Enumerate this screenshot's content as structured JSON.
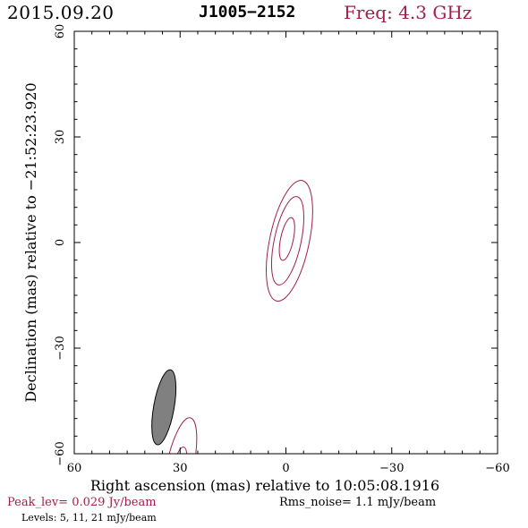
{
  "header": {
    "date": "2015.09.20",
    "source": "J1005−2152",
    "frequency": "Freq: 4.3 GHz"
  },
  "footer": {
    "peak": "Peak_lev=  0.029 Jy/beam",
    "rms": "Rms_noise=   1.1 mJy/beam",
    "levels": "Levels:   5,  11,  21 mJy/beam"
  },
  "colors": {
    "contour": "#a0204a",
    "beam_fill": "#808080",
    "axis": "#000000"
  },
  "chart_data": {
    "type": "contour",
    "xlabel": "Right ascension (mas) relative to 10:05:08.1916",
    "ylabel": "Declination (mas) relative to −21:52:23.920",
    "xlim": [
      60,
      -60
    ],
    "ylim": [
      -60,
      60
    ],
    "x_ticks": [
      60,
      30,
      0,
      -30,
      -60
    ],
    "y_ticks": [
      -60,
      -30,
      0,
      30,
      60
    ],
    "x_tick_labels": [
      "60",
      "30",
      "0",
      "−30",
      "−60"
    ],
    "y_tick_labels": [
      "−60",
      "−30",
      "0",
      "30",
      "60"
    ],
    "contour_levels_mJy": [
      5,
      11,
      21
    ],
    "contours": [
      {
        "level": 5,
        "cx": -1.0,
        "cy": 0.5,
        "rx": 5.6,
        "ry": 17.5,
        "pa_deg": 12
      },
      {
        "level": 11,
        "cx": -0.5,
        "cy": 0.5,
        "rx": 3.8,
        "ry": 12.8,
        "pa_deg": 12
      },
      {
        "level": 21,
        "cx": -0.3,
        "cy": 1.0,
        "rx": 1.8,
        "ry": 6.2,
        "pa_deg": 12
      }
    ],
    "sidelobe_contours": [
      {
        "level": 5,
        "cx": 30.0,
        "cy": -63.5,
        "rx": 3.8,
        "ry": 14.0,
        "pa_deg": 12
      },
      {
        "level": 11,
        "cx": 30.0,
        "cy": -63.0,
        "rx": 1.6,
        "ry": 5.0,
        "pa_deg": 12
      }
    ],
    "beam": {
      "cx": 34.6,
      "cy": -46.8,
      "rx": 2.9,
      "ry": 10.8,
      "pa_deg": 10
    }
  }
}
